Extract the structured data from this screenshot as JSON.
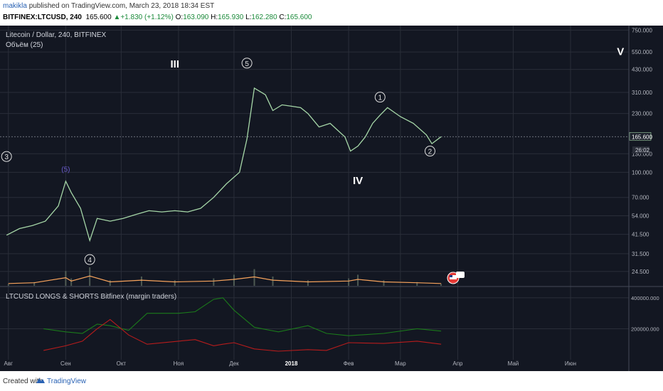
{
  "header": {
    "author": "makikla",
    "published_text": "published on TradingView.com, March 23, 2018 18:34 EST",
    "symbol": "BITFINEX:LTCUSD, 240",
    "last": "165.600",
    "change": "+1.830 (+1.12%)",
    "o_label": "O:",
    "o": "163.090",
    "h_label": "H:",
    "h": "165.930",
    "l_label": "L:",
    "l": "162.280",
    "c_label": "C:",
    "c": "165.600"
  },
  "pane_titles": {
    "main": "Litecoin / Dollar, 240, BITFINEX",
    "volume": "Объём (25)",
    "indicator": "LTCUSD LONGS & SHORTS Bitfinex (margin traders)"
  },
  "colors": {
    "background": "#131722",
    "grid": "#2a2e39",
    "price_up": "#a5d6a7",
    "price_down": "#c98a9a",
    "volume_ma": "#f7a35c",
    "longs": "#1b7a1b",
    "shorts": "#b71c1c",
    "annotation": "#e0e0e0",
    "subwave": "#6a5acd"
  },
  "footer": {
    "created_with": "Created with",
    "brand": "TradingView"
  },
  "chart_data": [
    {
      "type": "line",
      "title": "Litecoin / Dollar, 240, BITFINEX",
      "y_scale": "log",
      "ylim": [
        20,
        800
      ],
      "y_ticks": [
        "750.000",
        "550.000",
        "430.000",
        "310.000",
        "230.000",
        "165.600",
        "130.000",
        "100.000",
        "70.000",
        "54.000",
        "41.500",
        "31.500",
        "24.500"
      ],
      "x_ticks": [
        "Авг",
        "Сен",
        "Окт",
        "Ноя",
        "Дек",
        "2018",
        "Фев",
        "Мар",
        "Апр",
        "Май",
        "Июн"
      ],
      "current_price": "165.600",
      "countdown": "26:02",
      "series": [
        {
          "x": [
            "2017-07-31",
            "2017-08-07",
            "2017-08-14",
            "2017-08-21",
            "2017-08-28",
            "2017-09-01",
            "2017-09-04",
            "2017-09-09",
            "2017-09-14",
            "2017-09-18",
            "2017-09-25",
            "2017-10-02",
            "2017-10-09",
            "2017-10-16",
            "2017-10-23",
            "2017-10-30",
            "2017-11-06",
            "2017-11-13",
            "2017-11-20",
            "2017-11-27",
            "2017-12-04",
            "2017-12-08",
            "2017-12-12",
            "2017-12-18",
            "2017-12-22",
            "2017-12-27",
            "2018-01-01",
            "2018-01-06",
            "2018-01-10",
            "2018-01-16",
            "2018-01-22",
            "2018-01-30",
            "2018-02-02",
            "2018-02-06",
            "2018-02-10",
            "2018-02-14",
            "2018-02-18",
            "2018-02-22",
            "2018-03-01",
            "2018-03-08",
            "2018-03-15",
            "2018-03-18",
            "2018-03-23"
          ],
          "values": [
            41,
            45,
            47,
            50,
            62,
            88,
            75,
            60,
            38,
            52,
            50,
            52,
            55,
            58,
            57,
            58,
            57,
            60,
            70,
            85,
            100,
            160,
            330,
            300,
            240,
            260,
            255,
            250,
            230,
            190,
            200,
            165,
            135,
            145,
            165,
            200,
            225,
            250,
            220,
            200,
            170,
            150,
            165.6
          ]
        }
      ],
      "annotations": [
        {
          "label": "3",
          "style": "circle",
          "date": "2017-07-31",
          "price": 125
        },
        {
          "label": "(5)",
          "style": "subwave",
          "date": "2017-09-01",
          "price": 105
        },
        {
          "label": "4",
          "style": "circle",
          "date": "2017-09-14",
          "price": 29
        },
        {
          "label": "III",
          "style": "roman",
          "date": "2017-10-30",
          "price": 470
        },
        {
          "label": "5",
          "style": "circle",
          "date": "2017-12-08",
          "price": 470
        },
        {
          "label": "IV",
          "style": "roman",
          "date": "2018-02-06",
          "price": 90
        },
        {
          "label": "1",
          "style": "circle",
          "date": "2018-02-18",
          "price": 290
        },
        {
          "label": "2",
          "style": "circle",
          "date": "2018-03-17",
          "price": 135
        },
        {
          "label": "V",
          "style": "roman",
          "date": "2018-06-28",
          "price": 560
        }
      ]
    },
    {
      "type": "bar",
      "title": "Объём (25)",
      "series": [
        {
          "name": "Объём",
          "x": [
            "2017-08-01",
            "2017-08-15",
            "2017-09-01",
            "2017-09-04",
            "2017-09-14",
            "2017-09-25",
            "2017-10-12",
            "2017-10-30",
            "2017-11-20",
            "2017-12-01",
            "2017-12-12",
            "2017-12-22",
            "2018-01-10",
            "2018-02-01",
            "2018-02-06",
            "2018-02-20",
            "2018-03-10",
            "2018-03-23"
          ],
          "values": [
            1,
            2,
            8,
            4,
            10,
            3,
            5,
            3,
            4,
            6,
            9,
            5,
            3,
            4,
            6,
            3,
            2,
            1
          ]
        }
      ]
    },
    {
      "type": "line",
      "title": "LTCUSD LONGS & SHORTS Bitfinex (margin traders)",
      "y_ticks": [
        "400000.000",
        "200000.000"
      ],
      "ylim": [
        0,
        450000
      ],
      "series": [
        {
          "x": [
            "2017-08-20",
            "2017-09-01",
            "2017-09-10",
            "2017-09-18",
            "2017-09-25",
            "2017-10-05",
            "2017-10-15",
            "2017-11-01",
            "2017-11-10",
            "2017-11-20",
            "2017-11-25",
            "2017-12-01",
            "2017-12-12",
            "2017-12-25",
            "2018-01-10",
            "2018-01-20",
            "2018-02-01",
            "2018-02-20",
            "2018-03-10",
            "2018-03-23"
          ],
          "values": [
            200000,
            180000,
            170000,
            230000,
            220000,
            190000,
            300000,
            300000,
            310000,
            390000,
            400000,
            320000,
            210000,
            180000,
            220000,
            170000,
            155000,
            170000,
            200000,
            185000
          ]
        },
        {
          "x": [
            "2017-08-20",
            "2017-09-01",
            "2017-09-10",
            "2017-09-18",
            "2017-09-25",
            "2017-10-05",
            "2017-10-15",
            "2017-11-01",
            "2017-11-10",
            "2017-11-20",
            "2017-11-25",
            "2017-12-01",
            "2017-12-12",
            "2017-12-25",
            "2018-01-10",
            "2018-01-20",
            "2018-02-01",
            "2018-02-20",
            "2018-03-10",
            "2018-03-23"
          ],
          "values": [
            60000,
            90000,
            120000,
            200000,
            260000,
            160000,
            100000,
            120000,
            130000,
            90000,
            100000,
            110000,
            70000,
            55000,
            65000,
            60000,
            110000,
            105000,
            120000,
            100000
          ]
        }
      ]
    }
  ]
}
